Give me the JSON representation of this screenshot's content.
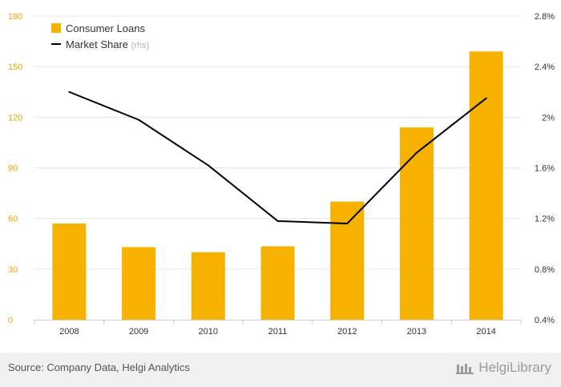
{
  "colors": {
    "bar": "#f7b200",
    "line": "#000000",
    "left_ticks": "#f0a500",
    "right_ticks": "#333333",
    "grid": "#e6e6e6"
  },
  "legend": {
    "bar_label": "Consumer Loans",
    "line_label": "Market Share",
    "line_suffix": "(rhs)"
  },
  "footer": {
    "source": "Source: Company Data, Helgi Analytics",
    "brand": "HelgiLibrary"
  },
  "chart_data": {
    "type": "bar",
    "categories": [
      "2008",
      "2009",
      "2010",
      "2011",
      "2012",
      "2013",
      "2014"
    ],
    "series": [
      {
        "name": "Consumer Loans",
        "type": "bar",
        "axis": "left",
        "values": [
          57,
          43,
          40,
          43.5,
          70,
          114,
          159
        ]
      },
      {
        "name": "Market Share",
        "type": "line",
        "axis": "right",
        "values": [
          2.2,
          1.98,
          1.62,
          1.18,
          1.16,
          1.72,
          2.15
        ]
      }
    ],
    "ylim": [
      0,
      180
    ],
    "y_ticks": [
      "0",
      "30",
      "60",
      "90",
      "120",
      "150",
      "180"
    ],
    "y2lim": [
      0.4,
      2.8
    ],
    "y2_ticks": [
      "0.4%",
      "0.8%",
      "1.2%",
      "1.6%",
      "2%",
      "2.4%",
      "2.8%"
    ],
    "grid": true,
    "legend_position": "top-left"
  }
}
